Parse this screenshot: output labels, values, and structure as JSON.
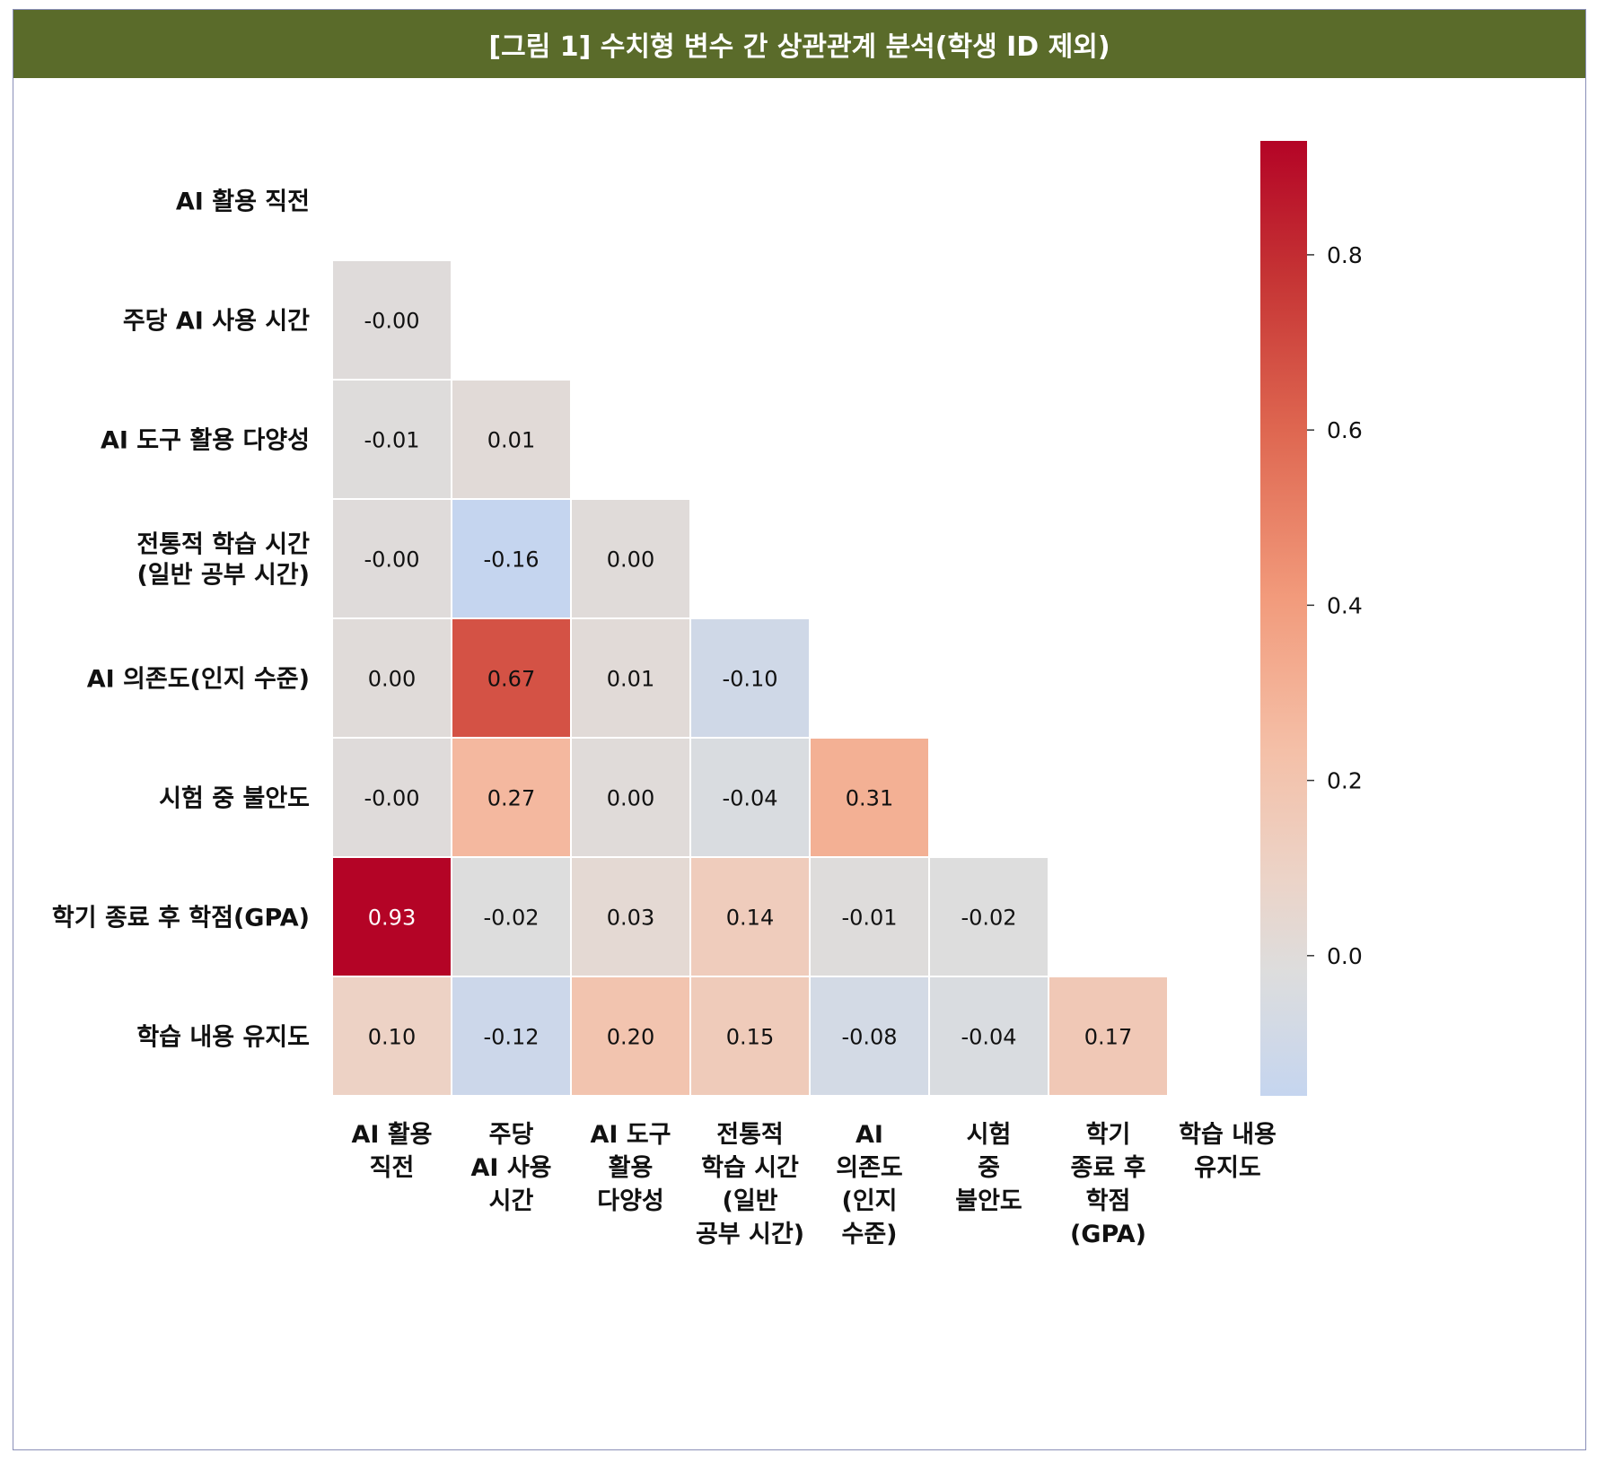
{
  "figure": {
    "title": "[그림 1] 수치형 변수 간 상관관계 분석(학생 ID 제외)"
  },
  "chart_data": {
    "type": "heatmap",
    "mask": "lower-triangle",
    "variables": [
      "AI 활용 직전",
      "주당 AI 사용 시간",
      "AI 도구 활용 다양성",
      "전통적 학습 시간 (일반 공부 시간)",
      "AI 의존도(인지 수준)",
      "시험 중 불안도",
      "학기 종료 후 학점(GPA)",
      "학습 내용 유지도"
    ],
    "row_labels": [
      [
        "AI 활용 직전"
      ],
      [
        "주당 AI 사용 시간"
      ],
      [
        "AI 도구 활용 다양성"
      ],
      [
        "전통적 학습 시간",
        "(일반 공부 시간)"
      ],
      [
        "AI 의존도(인지 수준)"
      ],
      [
        "시험 중 불안도"
      ],
      [
        "학기 종료 후 학점(GPA)"
      ],
      [
        "학습 내용 유지도"
      ]
    ],
    "col_labels": [
      [
        "AI 활용",
        "직전"
      ],
      [
        "주당",
        "AI 사용",
        "시간"
      ],
      [
        "AI 도구",
        "활용",
        "다양성"
      ],
      [
        "전통적",
        "학습 시간",
        "(일반",
        "공부 시간)"
      ],
      [
        "AI",
        "의존도",
        "(인지",
        "수준)"
      ],
      [
        "시험",
        "중",
        "불안도"
      ],
      [
        "학기",
        "종료 후",
        "학점",
        "(GPA)"
      ],
      [
        "학습 내용",
        "유지도"
      ]
    ],
    "values": [
      [],
      [
        -0.001
      ],
      [
        -0.01,
        0.01
      ],
      [
        -0.001,
        -0.16,
        0.0
      ],
      [
        0.0,
        0.67,
        0.01,
        -0.1
      ],
      [
        -0.001,
        0.27,
        0.0,
        -0.04,
        0.31
      ],
      [
        0.93,
        -0.02,
        0.03,
        0.14,
        -0.01,
        -0.02
      ],
      [
        0.1,
        -0.12,
        0.2,
        0.15,
        -0.08,
        -0.04,
        0.17
      ]
    ],
    "annotations": [
      [],
      [
        "-0.00"
      ],
      [
        "-0.01",
        "0.01"
      ],
      [
        "-0.00",
        "-0.16",
        "0.00"
      ],
      [
        "0.00",
        "0.67",
        "0.01",
        "-0.10"
      ],
      [
        "-0.00",
        "0.27",
        "0.00",
        "-0.04",
        "0.31"
      ],
      [
        "0.93",
        "-0.02",
        "0.03",
        "0.14",
        "-0.01",
        "-0.02"
      ],
      [
        "0.10",
        "-0.12",
        "0.20",
        "0.15",
        "-0.08",
        "-0.04",
        "0.17"
      ]
    ],
    "colorbar": {
      "colormap": "coolwarm",
      "vmin": -0.16,
      "vmax": 0.93,
      "ticks": [
        0.0,
        0.2,
        0.4,
        0.6,
        0.8
      ],
      "tick_labels": [
        "0.0",
        "0.2",
        "0.4",
        "0.6",
        "0.8"
      ]
    },
    "colors": {
      "title_bar": "#5a6b2a",
      "frame_border": "#8a8fb8",
      "cell_border": "#ffffff"
    }
  }
}
